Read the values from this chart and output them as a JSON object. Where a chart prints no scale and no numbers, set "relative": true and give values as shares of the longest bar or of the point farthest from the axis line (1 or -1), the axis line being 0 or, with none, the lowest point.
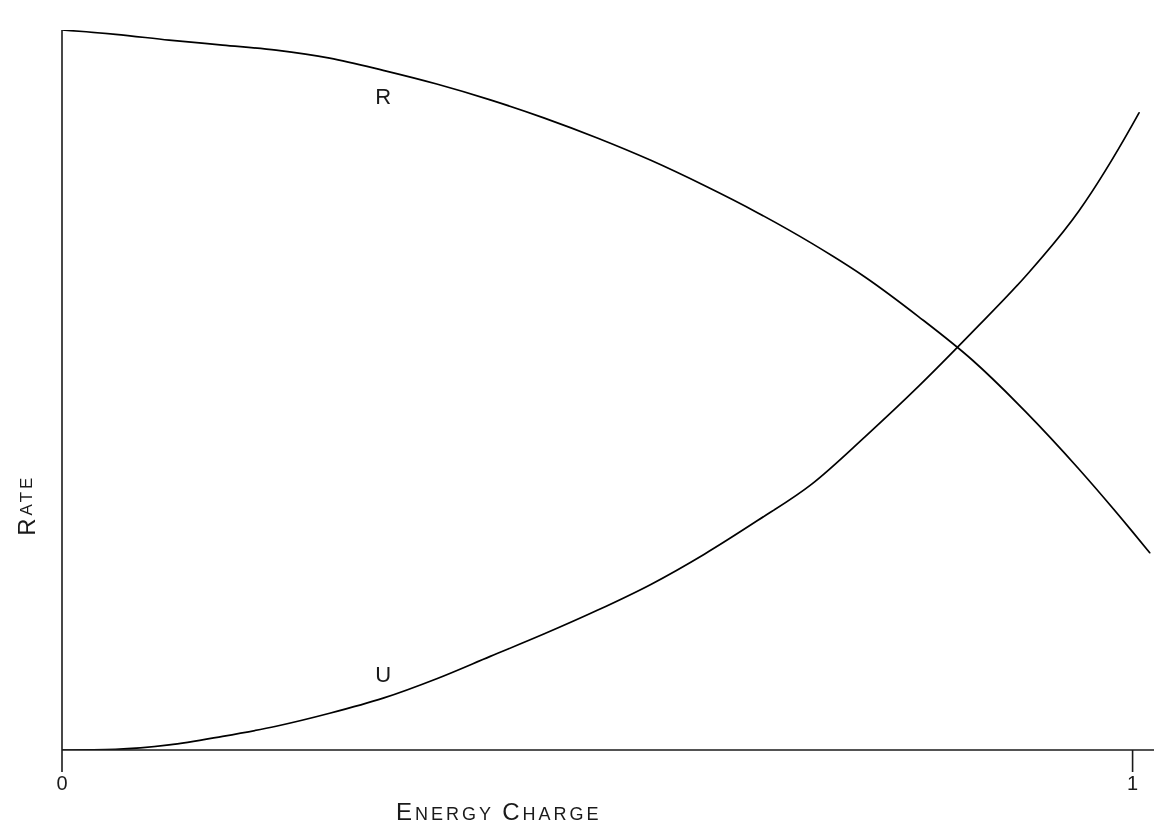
{
  "chart_data": {
    "type": "line",
    "xlabel": "ENERGY CHARGE",
    "ylabel": "RATE",
    "relative": true,
    "xlim": [
      0,
      1.02
    ],
    "xticks": [
      0,
      1
    ],
    "marker": "none",
    "line_style": "solid",
    "series": [
      {
        "name": "R",
        "color": "#000000",
        "x": [
          0,
          0.05,
          0.1,
          0.15,
          0.2,
          0.25,
          0.3,
          0.35,
          0.4,
          0.45,
          0.5,
          0.55,
          0.6,
          0.65,
          0.7,
          0.75,
          0.8,
          0.85,
          0.9,
          0.95,
          1,
          1.016
        ],
        "values": [
          1,
          0.994,
          0.986,
          0.979,
          0.972,
          0.961,
          0.944,
          0.925,
          0.903,
          0.878,
          0.85,
          0.819,
          0.784,
          0.746,
          0.704,
          0.657,
          0.602,
          0.542,
          0.47,
          0.39,
          0.303,
          0.274
        ]
      },
      {
        "name": "U",
        "color": "#000000",
        "x": [
          0,
          0.05,
          0.1,
          0.15,
          0.2,
          0.25,
          0.3,
          0.35,
          0.4,
          0.45,
          0.5,
          0.55,
          0.6,
          0.65,
          0.7,
          0.75,
          0.8,
          0.85,
          0.9,
          0.95,
          1,
          1.006
        ],
        "values": [
          0,
          0.001,
          0.007,
          0.019,
          0.033,
          0.051,
          0.072,
          0.099,
          0.13,
          0.161,
          0.194,
          0.23,
          0.272,
          0.319,
          0.369,
          0.435,
          0.505,
          0.58,
          0.658,
          0.749,
          0.869,
          0.885
        ]
      }
    ]
  }
}
